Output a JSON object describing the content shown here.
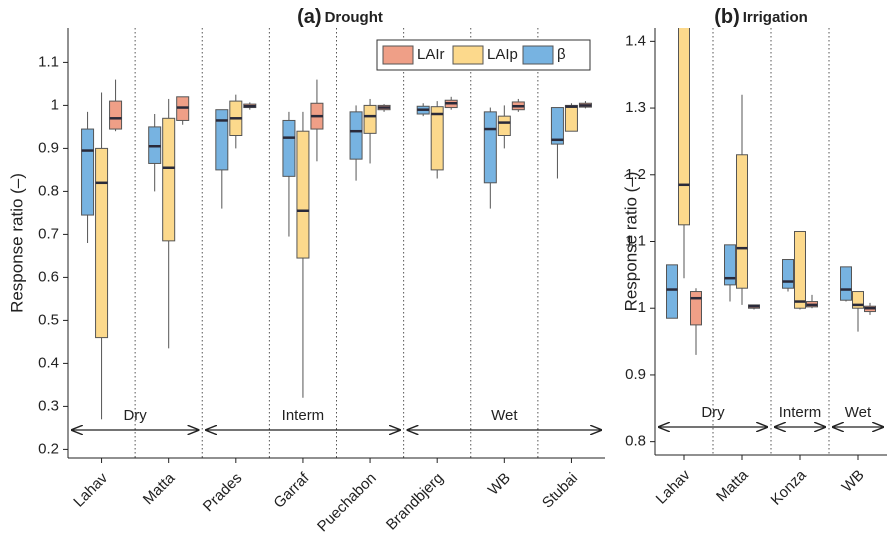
{
  "chart_data": [
    {
      "type": "box",
      "panel_label": "(a)",
      "title": "Drought",
      "ylabel": "Response ratio (–)",
      "categories": [
        "Lahav",
        "Matta",
        "Prades",
        "Garraf",
        "Puechabon",
        "Brandbjerg",
        "WB",
        "Stubai"
      ],
      "series": [
        {
          "name": "β",
          "color": "#77b3e1",
          "values": [
            {
              "min": 0.68,
              "q1": 0.745,
              "median": 0.895,
              "q3": 0.945,
              "max": 0.985
            },
            {
              "min": 0.8,
              "q1": 0.865,
              "median": 0.905,
              "q3": 0.95,
              "max": 0.98
            },
            {
              "min": 0.76,
              "q1": 0.85,
              "median": 0.965,
              "q3": 0.99,
              "max": 0.99
            },
            {
              "min": 0.695,
              "q1": 0.835,
              "median": 0.925,
              "q3": 0.965,
              "max": 0.985
            },
            {
              "min": 0.825,
              "q1": 0.875,
              "median": 0.94,
              "q3": 0.985,
              "max": 1.0
            },
            {
              "min": 0.975,
              "q1": 0.98,
              "median": 0.99,
              "q3": 0.998,
              "max": 1.005
            },
            {
              "min": 0.76,
              "q1": 0.82,
              "median": 0.945,
              "q3": 0.985,
              "max": 0.995
            },
            {
              "min": 0.83,
              "q1": 0.91,
              "median": 0.92,
              "q3": 0.995,
              "max": 0.995
            }
          ]
        },
        {
          "name": "LAIp",
          "color": "#fcd98c",
          "values": [
            {
              "min": 0.27,
              "q1": 0.46,
              "median": 0.82,
              "q3": 0.9,
              "max": 1.03
            },
            {
              "min": 0.435,
              "q1": 0.685,
              "median": 0.855,
              "q3": 0.97,
              "max": 1.015
            },
            {
              "min": 0.9,
              "q1": 0.93,
              "median": 0.97,
              "q3": 1.01,
              "max": 1.025
            },
            {
              "min": 0.32,
              "q1": 0.645,
              "median": 0.755,
              "q3": 0.94,
              "max": 0.985
            },
            {
              "min": 0.865,
              "q1": 0.935,
              "median": 0.975,
              "q3": 1.0,
              "max": 1.015
            },
            {
              "min": 0.83,
              "q1": 0.85,
              "median": 0.98,
              "q3": 0.997,
              "max": 1.01
            },
            {
              "min": 0.9,
              "q1": 0.93,
              "median": 0.96,
              "q3": 0.975,
              "max": 1.0
            },
            {
              "min": 0.94,
              "q1": 0.94,
              "median": 0.997,
              "q3": 1.0,
              "max": 1.005
            }
          ]
        },
        {
          "name": "LAIr",
          "color": "#ef9f87",
          "values": [
            {
              "min": 0.94,
              "q1": 0.945,
              "median": 0.97,
              "q3": 1.01,
              "max": 1.06
            },
            {
              "min": 0.955,
              "q1": 0.965,
              "median": 0.995,
              "q3": 1.02,
              "max": 1.02
            },
            {
              "min": 0.99,
              "q1": 0.995,
              "median": 0.998,
              "q3": 1.003,
              "max": 1.007
            },
            {
              "min": 0.87,
              "q1": 0.945,
              "median": 0.975,
              "q3": 1.005,
              "max": 1.06
            },
            {
              "min": 0.985,
              "q1": 0.99,
              "median": 0.995,
              "q3": 1.0,
              "max": 1.003
            },
            {
              "min": 0.99,
              "q1": 0.995,
              "median": 1.005,
              "q3": 1.012,
              "max": 1.02
            },
            {
              "min": 0.985,
              "q1": 0.99,
              "median": 0.998,
              "q3": 1.008,
              "max": 1.015
            },
            {
              "min": 0.993,
              "q1": 0.996,
              "median": 1.0,
              "q3": 1.005,
              "max": 1.01
            }
          ]
        }
      ],
      "groups": [
        {
          "label": "Dry",
          "members": [
            "Lahav",
            "Matta"
          ]
        },
        {
          "label": "Interm",
          "members": [
            "Prades",
            "Garraf",
            "Puechabon"
          ]
        },
        {
          "label": "Wet",
          "members": [
            "Brandbjerg",
            "WB",
            "Stubai"
          ]
        }
      ],
      "ylim": [
        0.18,
        1.18
      ],
      "yticks": [
        0.2,
        0.3,
        0.4,
        0.5,
        0.6,
        0.7,
        0.8,
        0.9,
        1,
        1.1
      ],
      "legend": "upper right"
    },
    {
      "type": "box",
      "panel_label": "(b)",
      "title": "Irrigation",
      "ylabel": "Response ratio (–)",
      "categories": [
        "Lahav",
        "Matta",
        "Konza",
        "WB"
      ],
      "series": [
        {
          "name": "β",
          "color": "#77b3e1",
          "values": [
            {
              "min": 0.985,
              "q1": 0.985,
              "median": 1.028,
              "q3": 1.065,
              "max": 1.065
            },
            {
              "min": 1.01,
              "q1": 1.035,
              "median": 1.045,
              "q3": 1.095,
              "max": 1.095
            },
            {
              "min": 1.025,
              "q1": 1.03,
              "median": 1.04,
              "q3": 1.073,
              "max": 1.073
            },
            {
              "min": 1.01,
              "q1": 1.012,
              "median": 1.028,
              "q3": 1.062,
              "max": 1.062
            }
          ]
        },
        {
          "name": "LAIp",
          "color": "#fcd98c",
          "values": [
            {
              "min": 1.045,
              "q1": 1.125,
              "median": 1.185,
              "q3": 1.45,
              "max": 1.45
            },
            {
              "min": 1.005,
              "q1": 1.03,
              "median": 1.09,
              "q3": 1.23,
              "max": 1.32
            },
            {
              "min": 0.998,
              "q1": 1.0,
              "median": 1.01,
              "q3": 1.115,
              "max": 1.115
            },
            {
              "min": 0.965,
              "q1": 1.0,
              "median": 1.005,
              "q3": 1.025,
              "max": 1.025
            }
          ]
        },
        {
          "name": "LAIr",
          "color": "#ef9f87",
          "values": [
            {
              "min": 0.93,
              "q1": 0.975,
              "median": 1.015,
              "q3": 1.025,
              "max": 1.03
            },
            {
              "min": 0.998,
              "q1": 1.0,
              "median": 1.003,
              "q3": 1.005,
              "max": 1.005
            },
            {
              "min": 1.0,
              "q1": 1.002,
              "median": 1.005,
              "q3": 1.01,
              "max": 1.02
            },
            {
              "min": 0.99,
              "q1": 0.995,
              "median": 1.0,
              "q3": 1.003,
              "max": 1.008
            }
          ]
        }
      ],
      "groups": [
        {
          "label": "Dry",
          "members": [
            "Lahav",
            "Matta"
          ]
        },
        {
          "label": "Interm",
          "members": [
            "Konza"
          ]
        },
        {
          "label": "Wet",
          "members": [
            "WB"
          ]
        }
      ],
      "ylim": [
        0.78,
        1.42
      ],
      "yticks": [
        0.8,
        0.9,
        1,
        1.1,
        1.2,
        1.3,
        1.4
      ]
    }
  ]
}
